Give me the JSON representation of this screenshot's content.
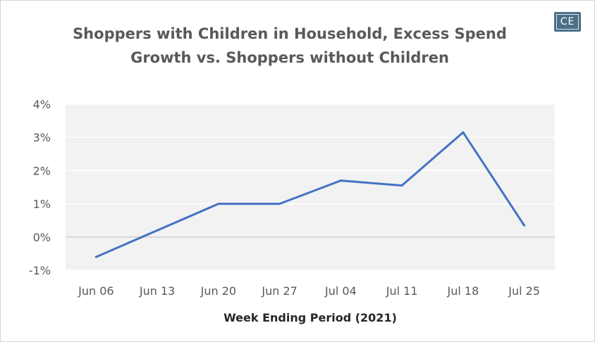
{
  "logo_text": "CE",
  "chart_data": {
    "type": "line",
    "title_lines": [
      "Shoppers with Children in Household, Excess Spend",
      "Growth vs. Shoppers without Children"
    ],
    "xlabel": "Week Ending Period (2021)",
    "ylabel": "",
    "categories": [
      "Jun 06",
      "Jun 13",
      "Jun 20",
      "Jun 27",
      "Jul 04",
      "Jul 11",
      "Jul 18",
      "Jul 25"
    ],
    "series": [
      {
        "values": [
          -0.6,
          0.2,
          1.0,
          1.0,
          1.7,
          1.55,
          3.15,
          0.35
        ]
      }
    ],
    "yticks": [
      -1,
      0,
      1,
      2,
      3,
      4
    ],
    "ytick_labels": [
      "-1%",
      "0%",
      "1%",
      "2%",
      "3%",
      "4%"
    ],
    "ylim": [
      -1,
      4
    ],
    "line_color": "#4472c4",
    "plot_background": "#f2f2f2",
    "grid": true,
    "legend": "none"
  }
}
